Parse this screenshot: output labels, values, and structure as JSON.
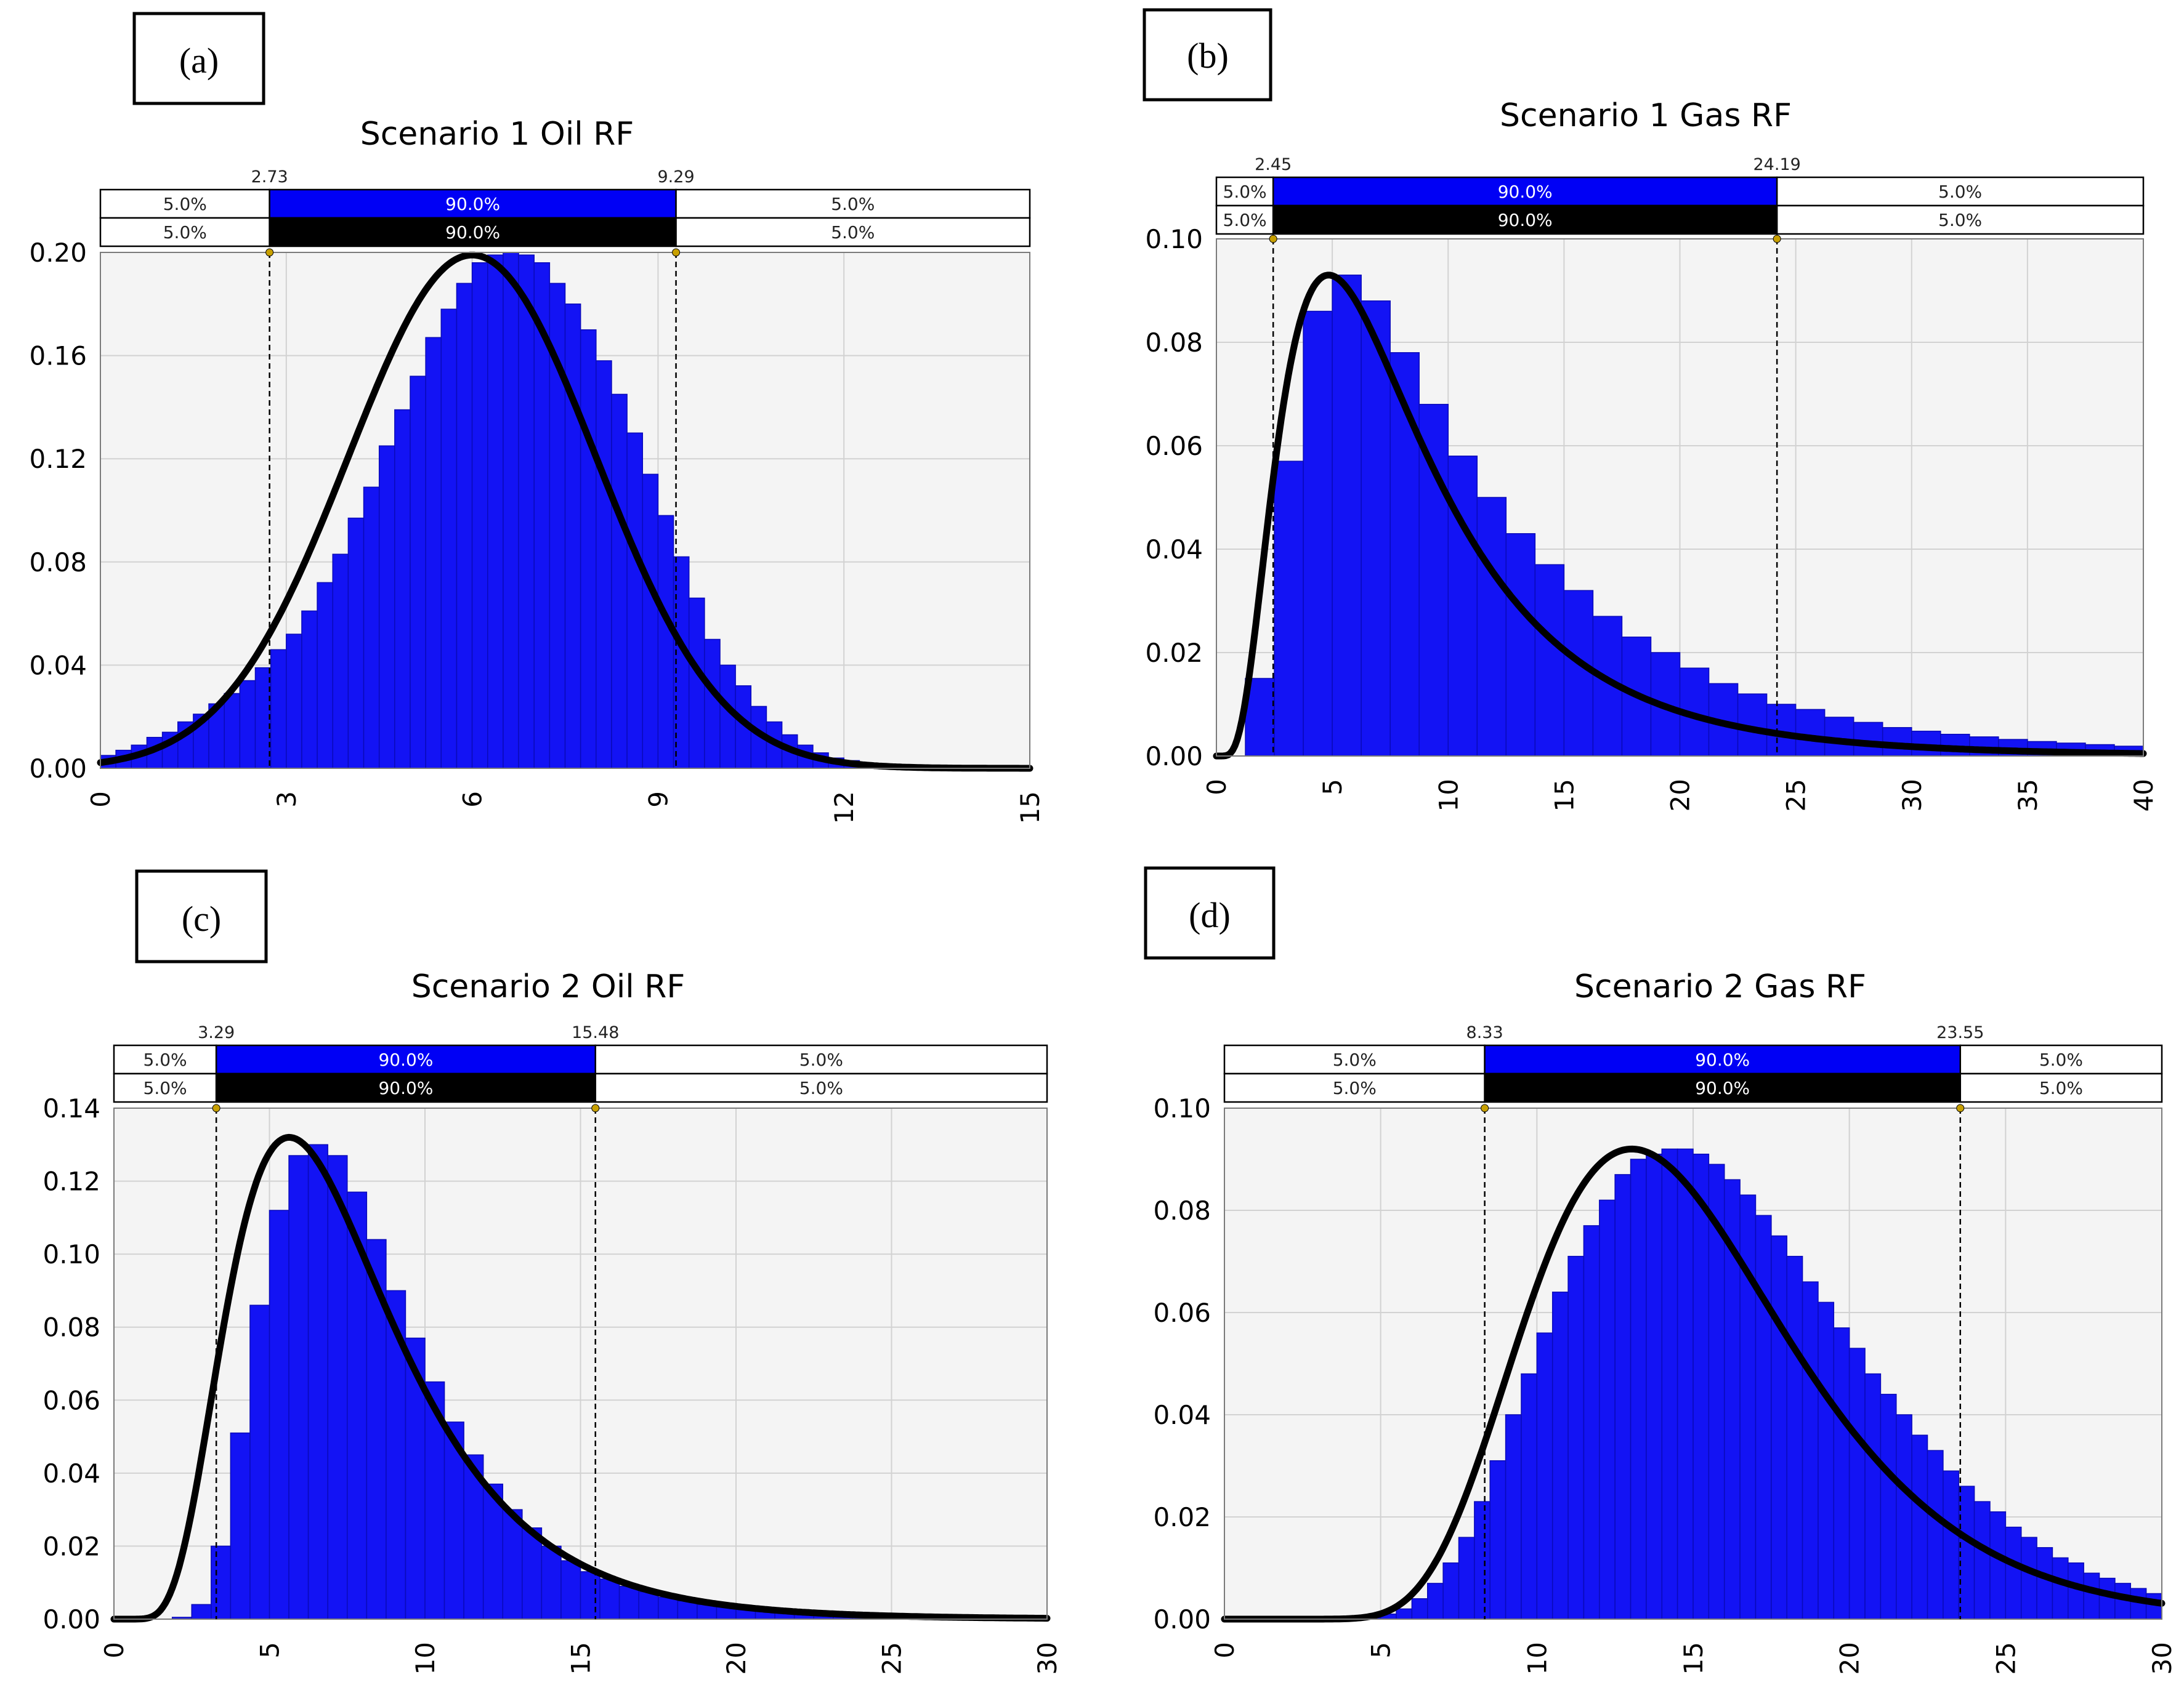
{
  "chart_data": [
    {
      "panel_label": "(a)",
      "type": "bar",
      "title": "Scenario 1 Oil RF",
      "xlim": [
        0,
        15
      ],
      "ylim": [
        0,
        0.2
      ],
      "xticks": [
        "0",
        "3",
        "6",
        "9",
        "12",
        "15"
      ],
      "yticks": [
        "0.00",
        "0.04",
        "0.08",
        "0.12",
        "0.16",
        "0.20"
      ],
      "lower_bound": "2.73",
      "upper_bound": "9.29",
      "lower_value": 2.73,
      "upper_value": 9.29,
      "band_input": {
        "left": "5.0%",
        "middle": "90.0%",
        "right": "5.0%"
      },
      "band_fit": {
        "left": "5.0%",
        "middle": "90.0%",
        "right": "5.0%"
      },
      "bin_start": 0,
      "bin_width": 0.25,
      "values": [
        0.005,
        0.007,
        0.009,
        0.012,
        0.014,
        0.018,
        0.021,
        0.025,
        0.029,
        0.034,
        0.039,
        0.046,
        0.052,
        0.061,
        0.072,
        0.083,
        0.097,
        0.109,
        0.125,
        0.139,
        0.152,
        0.167,
        0.178,
        0.188,
        0.196,
        0.199,
        0.2,
        0.199,
        0.196,
        0.188,
        0.18,
        0.17,
        0.158,
        0.145,
        0.13,
        0.114,
        0.098,
        0.082,
        0.066,
        0.05,
        0.04,
        0.032,
        0.024,
        0.018,
        0.013,
        0.009,
        0.006,
        0.004,
        0.003,
        0.002,
        0.0015,
        0.001,
        0.0008,
        0.0006,
        0.0004,
        0.0003,
        0.0002,
        0.0001,
        0.0001,
        0.0001
      ],
      "fit": {
        "dist": "normal",
        "mean": 6.0,
        "sd": 2.0,
        "peak": 0.199
      }
    },
    {
      "panel_label": "(b)",
      "type": "bar",
      "title": "Scenario 1 Gas RF",
      "xlim": [
        0,
        40
      ],
      "ylim": [
        0,
        0.1
      ],
      "xticks": [
        "0",
        "5",
        "10",
        "15",
        "20",
        "25",
        "30",
        "35",
        "40"
      ],
      "yticks": [
        "0.00",
        "0.02",
        "0.04",
        "0.06",
        "0.08",
        "0.10"
      ],
      "lower_bound": "2.45",
      "upper_bound": "24.19",
      "lower_value": 2.45,
      "upper_value": 24.19,
      "band_input": {
        "left": "5.0%",
        "middle": "90.0%",
        "right": "5.0%"
      },
      "band_fit": {
        "left": "5.0%",
        "middle": "90.0%",
        "right": "5.0%"
      },
      "bin_start": 0,
      "bin_width": 1.25,
      "values": [
        0.0,
        0.015,
        0.057,
        0.086,
        0.093,
        0.088,
        0.078,
        0.068,
        0.058,
        0.05,
        0.043,
        0.037,
        0.032,
        0.027,
        0.023,
        0.02,
        0.017,
        0.014,
        0.012,
        0.01,
        0.009,
        0.0075,
        0.0065,
        0.0055,
        0.0048,
        0.0042,
        0.0037,
        0.0032,
        0.0028,
        0.0025,
        0.0022,
        0.0019
      ],
      "fit": {
        "dist": "lognormal",
        "mu": 2.0,
        "sigma": 0.65,
        "peak": 0.093
      }
    },
    {
      "panel_label": "(c)",
      "type": "bar",
      "title": "Scenario 2 Oil RF",
      "xlim": [
        0,
        30
      ],
      "ylim": [
        0,
        0.14
      ],
      "xticks": [
        "0",
        "5",
        "10",
        "15",
        "20",
        "25",
        "30"
      ],
      "yticks": [
        "0.00",
        "0.02",
        "0.04",
        "0.06",
        "0.08",
        "0.10",
        "0.12",
        "0.14"
      ],
      "lower_bound": "3.29",
      "upper_bound": "15.48",
      "lower_value": 3.29,
      "upper_value": 15.48,
      "band_input": {
        "left": "5.0%",
        "middle": "90.0%",
        "right": "5.0%"
      },
      "band_fit": {
        "left": "5.0%",
        "middle": "90.0%",
        "right": "5.0%"
      },
      "bin_start": 0,
      "bin_width": 0.625,
      "values": [
        0,
        0,
        0,
        0.0005,
        0.004,
        0.02,
        0.051,
        0.086,
        0.112,
        0.127,
        0.13,
        0.127,
        0.117,
        0.104,
        0.09,
        0.077,
        0.065,
        0.054,
        0.045,
        0.037,
        0.03,
        0.025,
        0.02,
        0.016,
        0.013,
        0.011,
        0.009,
        0.0075,
        0.006,
        0.005,
        0.004,
        0.0035,
        0.003,
        0.0025,
        0.002,
        0.0017,
        0.0015,
        0.0012,
        0.001,
        0.0009,
        0.0008,
        0.0007,
        0.0006,
        0.0005,
        0.0004,
        0.0004,
        0.0003,
        0.0003
      ],
      "fit": {
        "dist": "lognormal",
        "mu": 1.95,
        "sigma": 0.47,
        "peak": 0.132
      }
    },
    {
      "panel_label": "(d)",
      "type": "bar",
      "title": "Scenario 2 Gas RF",
      "xlim": [
        0,
        30
      ],
      "ylim": [
        0,
        0.1
      ],
      "xticks": [
        "0",
        "5",
        "10",
        "15",
        "20",
        "25",
        "30"
      ],
      "yticks": [
        "0.00",
        "0.02",
        "0.04",
        "0.06",
        "0.08",
        "0.10"
      ],
      "lower_bound": "8.33",
      "upper_bound": "23.55",
      "lower_value": 8.33,
      "upper_value": 23.55,
      "band_input": {
        "left": "5.0%",
        "middle": "90.0%",
        "right": "5.0%"
      },
      "band_fit": {
        "left": "5.0%",
        "middle": "90.0%",
        "right": "5.0%"
      },
      "bin_start": 0,
      "bin_width": 0.5,
      "values": [
        0,
        0,
        0,
        0,
        0,
        0,
        0,
        0,
        0,
        0.0003,
        0.001,
        0.002,
        0.004,
        0.007,
        0.011,
        0.016,
        0.023,
        0.031,
        0.04,
        0.048,
        0.056,
        0.064,
        0.071,
        0.077,
        0.082,
        0.087,
        0.09,
        0.091,
        0.092,
        0.092,
        0.091,
        0.089,
        0.086,
        0.083,
        0.079,
        0.075,
        0.071,
        0.066,
        0.062,
        0.057,
        0.053,
        0.048,
        0.044,
        0.04,
        0.036,
        0.033,
        0.029,
        0.026,
        0.023,
        0.021,
        0.018,
        0.016,
        0.014,
        0.012,
        0.011,
        0.009,
        0.008,
        0.007,
        0.006,
        0.005
      ],
      "fit": {
        "dist": "lognormal",
        "mu": 2.67,
        "sigma": 0.32,
        "peak": 0.092
      }
    }
  ]
}
